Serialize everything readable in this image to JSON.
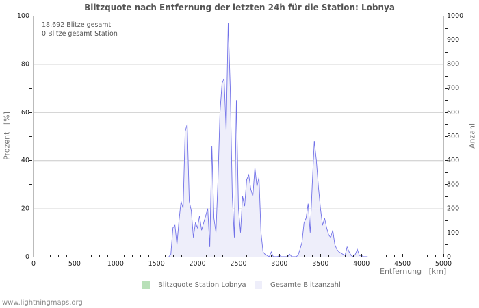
{
  "chart_data": {
    "type": "area",
    "title": "Blitzquote nach Entfernung der letzten 24h für die Station: Lobnya",
    "xlabel": "Entfernung   [km]",
    "ylabel_left": "Prozent   [%]",
    "ylabel_right": "Anzahl",
    "xlim": [
      0,
      5000
    ],
    "ylim_left": [
      0,
      100
    ],
    "ylim_right": [
      0,
      1000
    ],
    "x_ticks": [
      0,
      500,
      1000,
      1500,
      2000,
      2500,
      3000,
      3500,
      4000,
      4500,
      5000
    ],
    "y_ticks_left": [
      0,
      20,
      40,
      60,
      80,
      100
    ],
    "y_ticks_right": [
      0,
      100,
      200,
      300,
      400,
      500,
      600,
      700,
      800,
      900,
      1000
    ],
    "grid": true,
    "legend_position": "bottom",
    "annotations": [
      "18.692 Blitze gesamt",
      "0 Blitze gesamt Station"
    ],
    "series": [
      {
        "name": "Blitzquote Station Lobnya",
        "axis": "left",
        "color": "#b8e0b8",
        "x": [],
        "values": []
      },
      {
        "name": "Gesamte Blitzanzahl",
        "axis": "right",
        "color": "#7070e8",
        "fill": "#eeeefa",
        "x": [
          1650,
          1675,
          1700,
          1725,
          1750,
          1775,
          1800,
          1825,
          1850,
          1875,
          1900,
          1925,
          1950,
          1975,
          2000,
          2025,
          2050,
          2075,
          2100,
          2125,
          2150,
          2175,
          2200,
          2225,
          2250,
          2275,
          2300,
          2325,
          2350,
          2375,
          2400,
          2425,
          2450,
          2475,
          2500,
          2525,
          2550,
          2575,
          2600,
          2625,
          2650,
          2675,
          2700,
          2725,
          2750,
          2775,
          2800,
          2825,
          2850,
          2875,
          2900,
          2925,
          2950,
          2975,
          3000,
          3025,
          3050,
          3075,
          3100,
          3125,
          3150,
          3175,
          3200,
          3225,
          3250,
          3275,
          3300,
          3325,
          3350,
          3375,
          3400,
          3425,
          3450,
          3475,
          3500,
          3525,
          3550,
          3575,
          3600,
          3625,
          3650,
          3675,
          3700,
          3725,
          3750,
          3775,
          3800,
          3825,
          3850,
          3875,
          3900,
          3925,
          3950,
          3975,
          4000,
          4025,
          4050,
          4075
        ],
        "values": [
          0,
          10,
          120,
          130,
          50,
          150,
          230,
          200,
          520,
          550,
          230,
          190,
          80,
          140,
          120,
          170,
          110,
          140,
          170,
          200,
          40,
          460,
          160,
          100,
          320,
          600,
          720,
          740,
          520,
          970,
          700,
          250,
          80,
          650,
          200,
          100,
          250,
          210,
          320,
          340,
          280,
          250,
          370,
          290,
          330,
          100,
          20,
          10,
          5,
          0,
          20,
          0,
          0,
          0,
          5,
          0,
          0,
          0,
          0,
          10,
          0,
          0,
          0,
          5,
          30,
          60,
          140,
          160,
          220,
          100,
          300,
          480,
          400,
          290,
          200,
          130,
          160,
          120,
          90,
          80,
          110,
          50,
          30,
          20,
          15,
          10,
          5,
          40,
          20,
          5,
          0,
          10,
          30,
          5,
          5,
          0,
          0,
          0
        ]
      }
    ]
  },
  "legend": {
    "item1": "Blitzquote Station Lobnya",
    "item2": "Gesamte Blitzanzahl"
  },
  "stats": {
    "total": "18.692 Blitze gesamt",
    "station": "0 Blitze gesamt Station"
  },
  "footer": "www.lightningmaps.org"
}
